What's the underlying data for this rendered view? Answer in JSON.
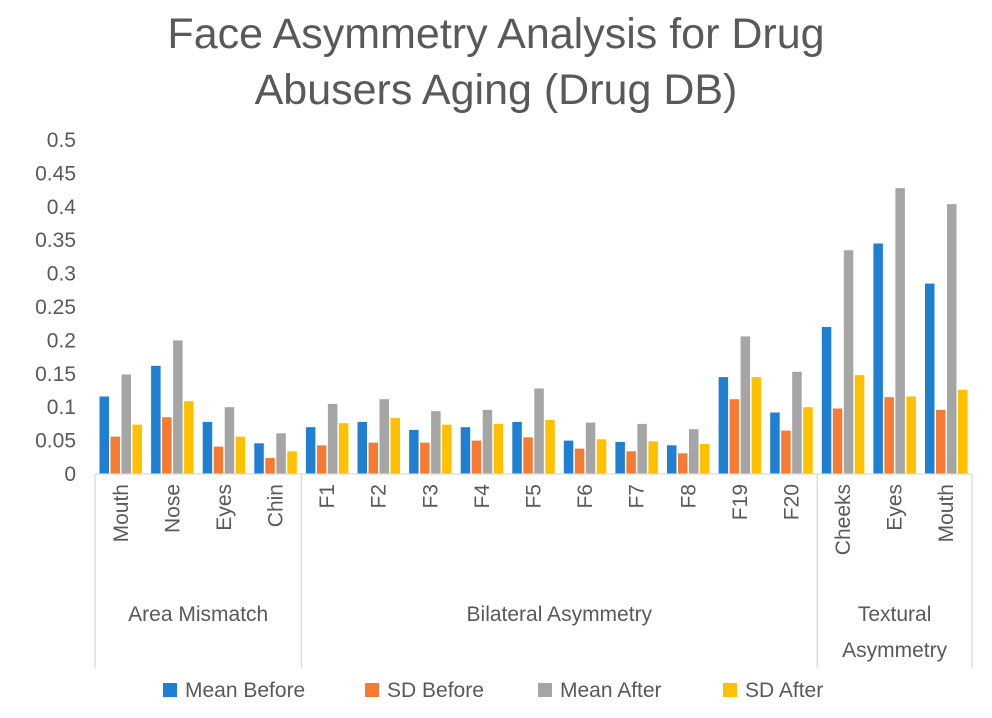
{
  "chart_data": {
    "type": "bar",
    "title_lines": [
      "Face Asymmetry Analysis for Drug",
      "Abusers Aging (Drug DB)"
    ],
    "ylim": [
      0,
      0.5
    ],
    "yticks": [
      "0",
      "0.05",
      "0.1",
      "0.15",
      "0.2",
      "0.25",
      "0.3",
      "0.35",
      "0.4",
      "0.45",
      "0.5"
    ],
    "grid": false,
    "legend_position": "bottom",
    "groups": [
      {
        "label": "Area Mismatch",
        "categories": [
          "Mouth",
          "Nose",
          "Eyes",
          "Chin"
        ]
      },
      {
        "label": "Bilateral Asymmetry",
        "categories": [
          "F1",
          "F2",
          "F3",
          "F4",
          "F5",
          "F6",
          "F7",
          "F8",
          "F19",
          "F20"
        ]
      },
      {
        "label": "Textural Asymmetry",
        "label_lines": [
          "Textural",
          "Asymmetry"
        ],
        "categories": [
          "Cheeks",
          "Eyes",
          "Mouth"
        ]
      }
    ],
    "categories": [
      "Mouth",
      "Nose",
      "Eyes",
      "Chin",
      "F1",
      "F2",
      "F3",
      "F4",
      "F5",
      "F6",
      "F7",
      "F8",
      "F19",
      "F20",
      "Cheeks",
      "Eyes",
      "Mouth"
    ],
    "series": [
      {
        "name": "Mean Before",
        "color": "#1f7fd0",
        "values": [
          0.116,
          0.162,
          0.078,
          0.046,
          0.07,
          0.078,
          0.066,
          0.07,
          0.078,
          0.05,
          0.048,
          0.043,
          0.145,
          0.092,
          0.22,
          0.345,
          0.285
        ]
      },
      {
        "name": "SD Before",
        "color": "#f47b31",
        "values": [
          0.056,
          0.085,
          0.041,
          0.024,
          0.043,
          0.047,
          0.047,
          0.05,
          0.055,
          0.038,
          0.034,
          0.031,
          0.112,
          0.065,
          0.098,
          0.115,
          0.096
        ]
      },
      {
        "name": "Mean After",
        "color": "#a5a5a5",
        "values": [
          0.149,
          0.2,
          0.1,
          0.061,
          0.105,
          0.112,
          0.094,
          0.096,
          0.128,
          0.077,
          0.075,
          0.067,
          0.206,
          0.153,
          0.335,
          0.428,
          0.404
        ]
      },
      {
        "name": "SD After",
        "color": "#ffc000",
        "values": [
          0.074,
          0.109,
          0.056,
          0.034,
          0.076,
          0.084,
          0.074,
          0.075,
          0.081,
          0.052,
          0.049,
          0.045,
          0.145,
          0.1,
          0.148,
          0.116,
          0.126
        ]
      }
    ]
  }
}
